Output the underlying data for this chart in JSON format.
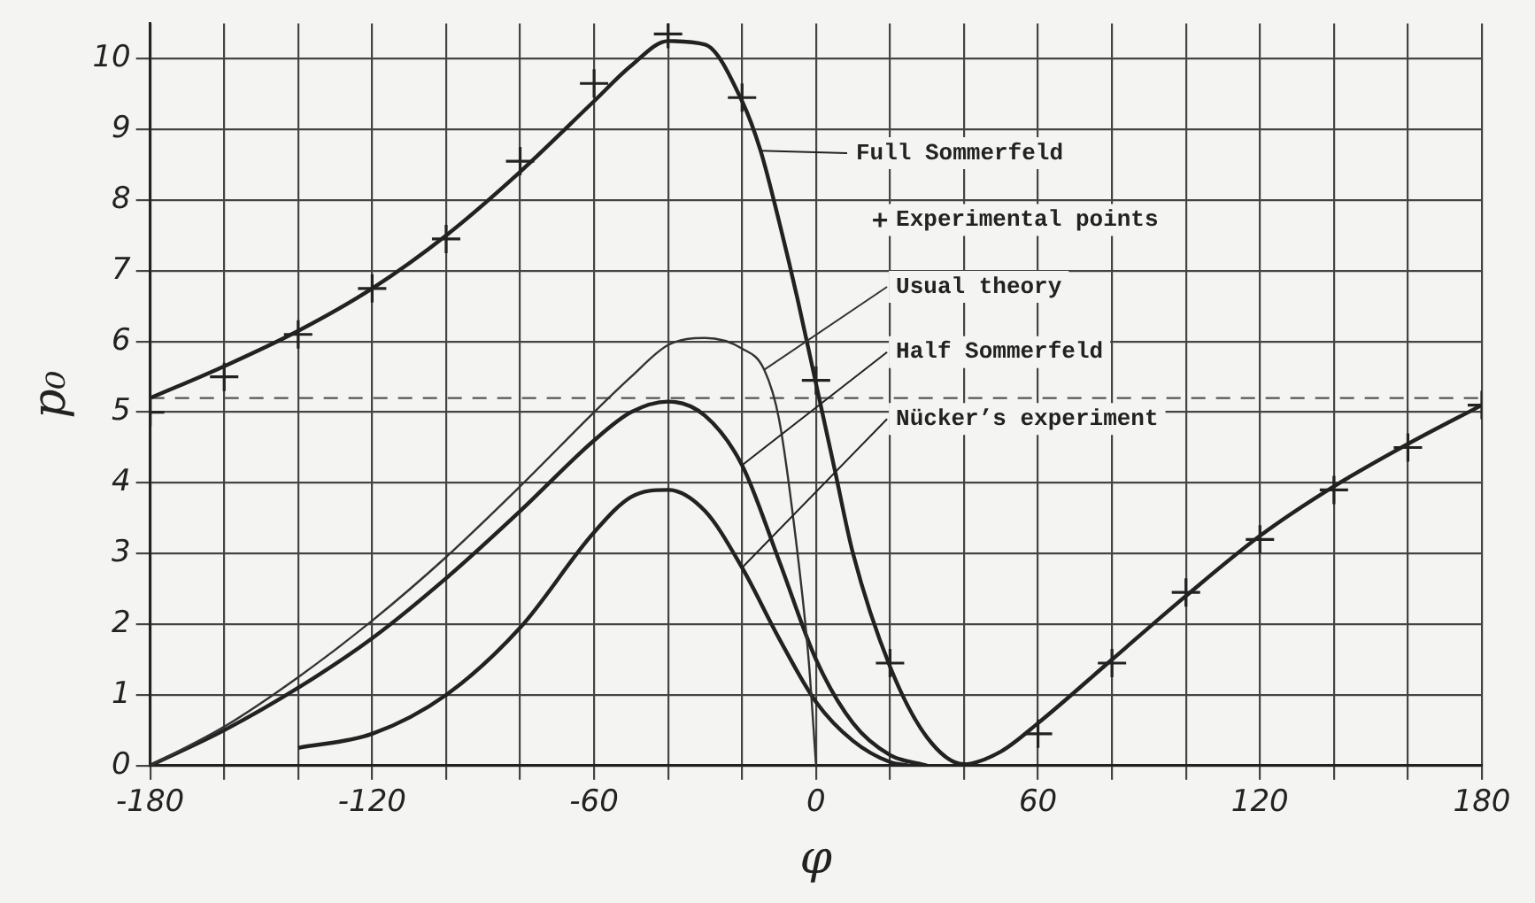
{
  "chart_data": {
    "type": "line",
    "xlabel": "φ",
    "ylabel": "p₀",
    "xlim": [
      -180,
      180
    ],
    "ylim": [
      0,
      10.5
    ],
    "xticks": [
      -180,
      {
        "value": -160,
        "label": null
      },
      {
        "value": -140,
        "label": null
      },
      -120,
      {
        "value": -100,
        "label": null
      },
      {
        "value": -80,
        "label": null
      },
      -60,
      {
        "value": -40,
        "label": null
      },
      {
        "value": -20,
        "label": null
      },
      0,
      {
        "value": 20,
        "label": null
      },
      {
        "value": 40,
        "label": null
      },
      60,
      {
        "value": 80,
        "label": null
      },
      {
        "value": 100,
        "label": null
      },
      120,
      {
        "value": 140,
        "label": null
      },
      {
        "value": 160,
        "label": null
      },
      180
    ],
    "yticks": [
      0,
      1,
      2,
      3,
      4,
      5,
      6,
      7,
      8,
      9,
      10
    ],
    "grid": true,
    "legend": "top right",
    "marker": "none",
    "line_style": "solid",
    "ref_lines": [
      {
        "axis": "y",
        "value": 5.2,
        "line_style": "dashed",
        "color": "#555555"
      }
    ],
    "series": [
      {
        "name": "Full Sommerfeld",
        "color": "#222222",
        "x": [
          -180,
          -160,
          -140,
          -120,
          -100,
          -80,
          -60,
          -50,
          -40,
          -30,
          -20,
          -15,
          -10,
          -5,
          0,
          5,
          10,
          20,
          30,
          40,
          50,
          60,
          80,
          100,
          120,
          140,
          160,
          180
        ],
        "values": [
          5.2,
          5.65,
          6.15,
          6.75,
          7.5,
          8.4,
          9.4,
          9.9,
          10.25,
          10.2,
          9.4,
          8.7,
          7.7,
          6.6,
          5.4,
          4.2,
          3.0,
          1.4,
          0.4,
          0.02,
          0.2,
          0.6,
          1.5,
          2.4,
          3.25,
          3.95,
          4.55,
          5.1
        ]
      },
      {
        "name": "Experimental points",
        "type": "scatter",
        "marker": "cross",
        "color": "#222222",
        "x": [
          -180,
          -160,
          -140,
          -120,
          -100,
          -80,
          -60,
          -40,
          -20,
          0,
          20,
          60,
          80,
          100,
          120,
          140,
          160,
          180
        ],
        "values": [
          5.0,
          5.5,
          6.1,
          6.75,
          7.45,
          8.55,
          9.65,
          10.35,
          9.45,
          5.45,
          1.45,
          0.45,
          1.45,
          2.45,
          3.2,
          3.9,
          4.5,
          5.1
        ]
      },
      {
        "name": "Usual theory",
        "color": "#333333",
        "x": [
          -180,
          -160,
          -140,
          -120,
          -100,
          -80,
          -60,
          -50,
          -40,
          -30,
          -20,
          -14,
          -10,
          -5,
          -2,
          0
        ],
        "values": [
          0,
          0.55,
          1.25,
          2.05,
          2.95,
          3.95,
          5.0,
          5.5,
          5.95,
          6.05,
          5.9,
          5.6,
          4.9,
          3.0,
          1.5,
          0
        ]
      },
      {
        "name": "Half Sommerfeld",
        "color": "#222222",
        "x": [
          -180,
          -160,
          -140,
          -120,
          -100,
          -80,
          -60,
          -50,
          -40,
          -30,
          -20,
          -10,
          0,
          10,
          20,
          30
        ],
        "values": [
          0,
          0.5,
          1.1,
          1.8,
          2.65,
          3.6,
          4.6,
          5.0,
          5.15,
          4.95,
          4.25,
          2.9,
          1.5,
          0.6,
          0.15,
          0
        ]
      },
      {
        "name": "Nücker’s experiment",
        "color": "#222222",
        "x": [
          -140,
          -120,
          -100,
          -80,
          -60,
          -50,
          -40,
          -30,
          -20,
          -10,
          0,
          10,
          20,
          25
        ],
        "values": [
          0.25,
          0.45,
          1.0,
          1.95,
          3.3,
          3.8,
          3.9,
          3.6,
          2.8,
          1.8,
          0.9,
          0.35,
          0.05,
          0
        ]
      }
    ]
  }
}
